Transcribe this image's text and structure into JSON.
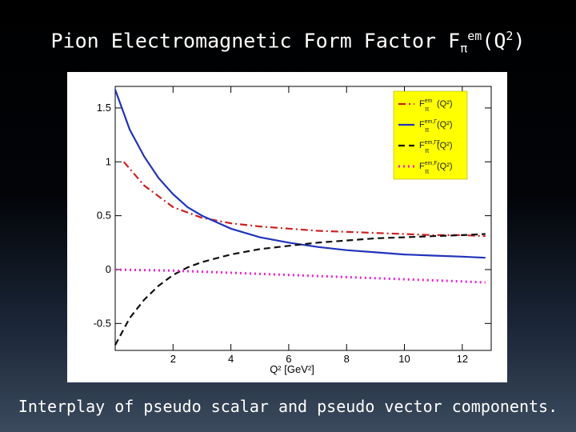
{
  "slide": {
    "title": "Pion Electromagnetic Form Factor F",
    "title_sub": "π",
    "title_sup": "em",
    "title_tail_a": "(Q",
    "title_tail_sup": "2",
    "title_tail_b": ")",
    "caption": "Interplay of pseudo scalar and pseudo vector components."
  },
  "chart_data": {
    "type": "line",
    "xlabel": "Q² [GeV²]",
    "xlim": [
      0,
      13
    ],
    "ylim": [
      -0.75,
      1.7
    ],
    "xticks": [
      2,
      4,
      6,
      8,
      10,
      12
    ],
    "yticks": [
      -0.5,
      0,
      0.5,
      1,
      1.5
    ],
    "ytick_labels": [
      "-0.5",
      "0",
      "0.5",
      "1",
      "1.5"
    ],
    "grid": false,
    "legend_position": "top-right",
    "legend_background": "#ffff00",
    "series": [
      {
        "name": "F_π^em(Q²)",
        "legend_base": "F",
        "legend_sub": "π",
        "legend_sup": "em",
        "legend_tail": "(Q²)",
        "color": "#cc2222",
        "dash": "dashdot",
        "x": [
          0.3,
          1,
          2,
          3,
          4,
          5,
          6,
          7,
          8,
          9,
          10,
          11,
          12,
          12.8
        ],
        "y": [
          1.0,
          0.78,
          0.58,
          0.48,
          0.43,
          0.4,
          0.38,
          0.36,
          0.35,
          0.34,
          0.33,
          0.32,
          0.32,
          0.31
        ]
      },
      {
        "name": "F_π^em,Γ(Q²)",
        "legend_base": "F",
        "legend_sub": "π",
        "legend_sup": "em,Γ",
        "legend_tail": "(Q²)",
        "color": "#2233bb",
        "dash": "solid",
        "x": [
          0.0,
          0.5,
          1,
          1.5,
          2,
          2.5,
          3,
          4,
          5,
          6,
          7,
          8,
          9,
          10,
          11,
          12,
          12.8
        ],
        "y": [
          1.67,
          1.3,
          1.05,
          0.85,
          0.7,
          0.58,
          0.5,
          0.38,
          0.3,
          0.25,
          0.21,
          0.18,
          0.16,
          0.14,
          0.13,
          0.12,
          0.11
        ]
      },
      {
        "name": "F_π^em,ΓΓ(Q²)",
        "legend_base": "F",
        "legend_sub": "π",
        "legend_sup": "em,ΓΓ",
        "legend_tail": "(Q²)",
        "color": "#111111",
        "dash": "dashed",
        "x": [
          0.0,
          0.5,
          1,
          1.5,
          2,
          2.5,
          3,
          4,
          5,
          6,
          7,
          8,
          9,
          10,
          11,
          12,
          12.8
        ],
        "y": [
          -0.7,
          -0.45,
          -0.28,
          -0.15,
          -0.05,
          0.02,
          0.07,
          0.14,
          0.19,
          0.22,
          0.25,
          0.27,
          0.29,
          0.3,
          0.31,
          0.32,
          0.33
        ]
      },
      {
        "name": "F_π^em,F(Q²)",
        "legend_base": "F",
        "legend_sub": "π",
        "legend_sup": "em,F",
        "legend_tail": "(Q²)",
        "color": "#ee22cc",
        "dash": "dotted",
        "x": [
          0.0,
          2,
          4,
          6,
          8,
          10,
          12,
          12.8
        ],
        "y": [
          0.0,
          -0.01,
          -0.03,
          -0.05,
          -0.07,
          -0.09,
          -0.11,
          -0.12
        ]
      }
    ]
  }
}
